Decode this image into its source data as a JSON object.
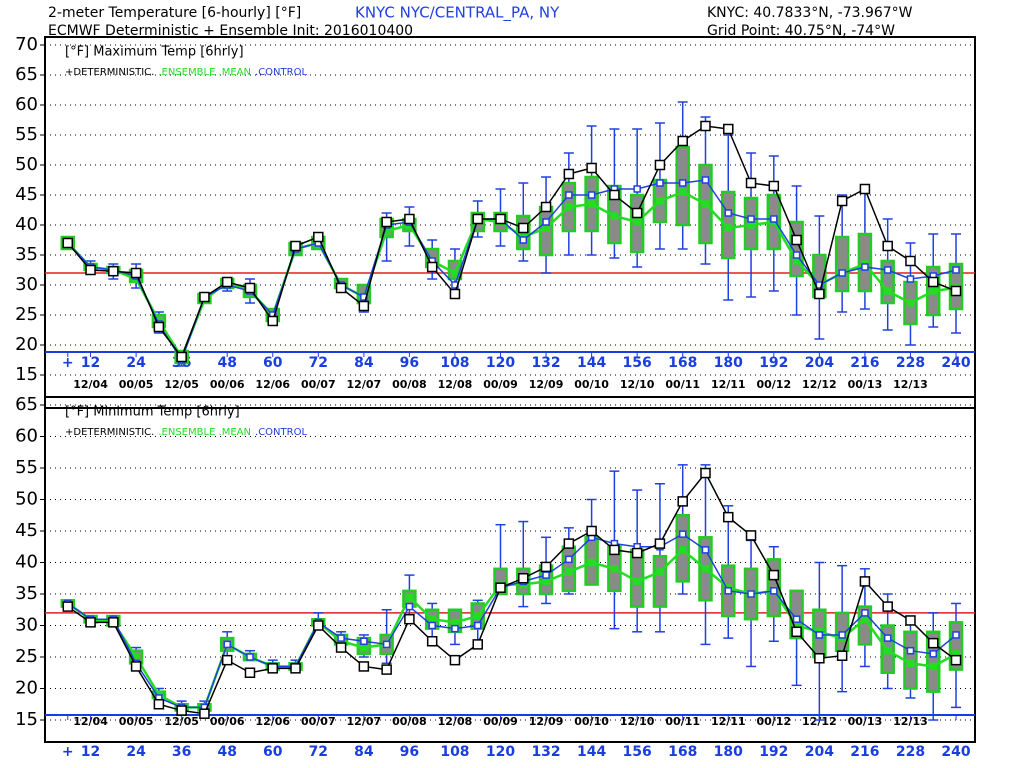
{
  "header": {
    "title": "2-meter Temperature [6-hourly] [°F]",
    "station": "KNYC NYC/CENTRAL_PA, NY",
    "subtitle": "ECMWF Deterministic + Ensemble Init: 2016010400",
    "station_coords": "KNYC: 40.7833°N, -73.967°W",
    "grid_point": "Grid Point: 40.75°N, -74°W"
  },
  "chart_data": [
    {
      "type": "ensemble",
      "title": "[°F] Maximum Temp [6hrly]",
      "x": [
        6,
        12,
        18,
        24,
        30,
        36,
        42,
        48,
        54,
        60,
        66,
        72,
        78,
        84,
        90,
        96,
        102,
        108,
        114,
        120,
        126,
        132,
        138,
        144,
        150,
        156,
        162,
        168,
        174,
        180,
        186,
        192,
        198,
        204,
        210,
        216,
        222,
        228,
        234,
        240
      ],
      "xlim": [
        0,
        245
      ],
      "xticks": [
        {
          "value": 6,
          "label": "+"
        },
        12,
        24,
        36,
        48,
        60,
        72,
        84,
        96,
        108,
        120,
        132,
        144,
        156,
        168,
        180,
        192,
        204,
        216,
        228,
        240
      ],
      "date_ticks": [
        {
          "value": 12,
          "label": "12/04"
        },
        {
          "value": 24,
          "label": "00/05"
        },
        {
          "value": 36,
          "label": "12/05"
        },
        {
          "value": 48,
          "label": "00/06"
        },
        {
          "value": 60,
          "label": "12/06"
        },
        {
          "value": 72,
          "label": "00/07"
        },
        {
          "value": 84,
          "label": "12/07"
        },
        {
          "value": 96,
          "label": "00/08"
        },
        {
          "value": 108,
          "label": "12/08"
        },
        {
          "value": 120,
          "label": "00/09"
        },
        {
          "value": 132,
          "label": "12/09"
        },
        {
          "value": 144,
          "label": "00/10"
        },
        {
          "value": 156,
          "label": "12/10"
        },
        {
          "value": 168,
          "label": "00/11"
        },
        {
          "value": 180,
          "label": "12/11"
        },
        {
          "value": 192,
          "label": "00/12"
        },
        {
          "value": 204,
          "label": "12/12"
        },
        {
          "value": 216,
          "label": "00/13"
        },
        {
          "value": 228,
          "label": "12/13"
        }
      ],
      "ylim": [
        15,
        70
      ],
      "yticks": [
        15,
        20,
        25,
        30,
        35,
        40,
        45,
        50,
        55,
        60,
        65,
        70
      ],
      "grid": true,
      "reference_line": {
        "value": 32,
        "color": "#e02020"
      },
      "series": [
        {
          "name": "+DETERMINISTIC.",
          "color": "#000000",
          "values": [
            37,
            32.5,
            32.3,
            32,
            23,
            18,
            28,
            30.5,
            29.5,
            24,
            36.5,
            38,
            29.5,
            26.5,
            40.5,
            41,
            33,
            28.5,
            41,
            41,
            39.5,
            43,
            48.5,
            49.5,
            45,
            42,
            50,
            54,
            56.5,
            56,
            47,
            46.5,
            37.5,
            28.5,
            44,
            46,
            36.5,
            34,
            30.5,
            29
          ]
        },
        {
          "name": ".ENSEMBLE .MEAN",
          "color": "#22dd22",
          "values": [
            37,
            33,
            32.5,
            31,
            24,
            18,
            27.5,
            30.5,
            29,
            25,
            36,
            37,
            30,
            28,
            39,
            40,
            34,
            32,
            41,
            40.5,
            38,
            39.5,
            43,
            43.5,
            41.5,
            40.5,
            44,
            45.5,
            43.5,
            39.5,
            40,
            40.5,
            34,
            30,
            32,
            33.5,
            29,
            27,
            29,
            29.5
          ]
        },
        {
          "name": ".CONTROL",
          "color": "#2040e0",
          "values": [
            37,
            33,
            32.5,
            31.5,
            23.5,
            17.5,
            28,
            30,
            29,
            25,
            36,
            37,
            30,
            28,
            40,
            40.5,
            34,
            30,
            41,
            41,
            37.5,
            40.5,
            45,
            45,
            46,
            46,
            47,
            47,
            47.5,
            42,
            41,
            41,
            35,
            30,
            32,
            33,
            32.5,
            31,
            31.5,
            32.5
          ]
        }
      ],
      "boxes": {
        "color": "#22cc22",
        "fill": "#8a8a8a",
        "whisker_color": "#2040e0",
        "q1": [
          36,
          32.5,
          32,
          30.5,
          23,
          17,
          27,
          29.5,
          28,
          24,
          35,
          36,
          29.5,
          27,
          38,
          39,
          33,
          31,
          39,
          39,
          36,
          35,
          39,
          39,
          37,
          35.5,
          40.5,
          40,
          37,
          34.5,
          36,
          36,
          31.5,
          28,
          29,
          29,
          27,
          23.5,
          25,
          26
        ],
        "q3": [
          38,
          33.5,
          33,
          32.5,
          25,
          19,
          28.5,
          31,
          30,
          26,
          37,
          38,
          31,
          30,
          41,
          41,
          36,
          34,
          42,
          42,
          41.5,
          43,
          47,
          48,
          46.5,
          45,
          47.5,
          53,
          50,
          45.5,
          44.5,
          45,
          40.5,
          35,
          38,
          38.5,
          34,
          30.5,
          33,
          33.5
        ],
        "low": [
          36,
          32,
          31,
          29.5,
          22,
          16.5,
          27,
          29,
          27,
          23.5,
          35,
          36,
          29,
          25.5,
          34,
          36.5,
          31,
          28.5,
          38,
          36.5,
          34,
          32,
          35,
          35,
          34.5,
          33,
          36,
          36,
          33.5,
          27.5,
          28,
          29,
          25,
          21,
          25.5,
          26,
          22.5,
          20,
          23,
          22
        ],
        "high": [
          38,
          34,
          33.5,
          33.5,
          25.5,
          19,
          28.5,
          31,
          31,
          26,
          37,
          38.5,
          31,
          30,
          42,
          43,
          37.5,
          36,
          44,
          46,
          47,
          48,
          52,
          56.5,
          56,
          56,
          57,
          60.5,
          58,
          55,
          52,
          51.5,
          46.5,
          41.5,
          45,
          45.5,
          41,
          37,
          38.5,
          38.5
        ]
      }
    },
    {
      "type": "ensemble",
      "title": "[°F] Minimum Temp [6hrly]",
      "x": [
        6,
        12,
        18,
        24,
        30,
        36,
        42,
        48,
        54,
        60,
        66,
        72,
        78,
        84,
        90,
        96,
        102,
        108,
        114,
        120,
        126,
        132,
        138,
        144,
        150,
        156,
        162,
        168,
        174,
        180,
        186,
        192,
        198,
        204,
        210,
        216,
        222,
        228,
        234,
        240
      ],
      "xlim": [
        0,
        245
      ],
      "xticks": [
        {
          "value": 6,
          "label": "+"
        },
        12,
        24,
        36,
        48,
        60,
        72,
        84,
        96,
        108,
        120,
        132,
        144,
        156,
        168,
        180,
        192,
        204,
        216,
        228,
        240
      ],
      "date_ticks": [
        {
          "value": 12,
          "label": "12/04"
        },
        {
          "value": 24,
          "label": "00/05"
        },
        {
          "value": 36,
          "label": "12/05"
        },
        {
          "value": 48,
          "label": "00/06"
        },
        {
          "value": 60,
          "label": "12/06"
        },
        {
          "value": 72,
          "label": "00/07"
        },
        {
          "value": 84,
          "label": "12/07"
        },
        {
          "value": 96,
          "label": "00/08"
        },
        {
          "value": 108,
          "label": "12/08"
        },
        {
          "value": 120,
          "label": "00/09"
        },
        {
          "value": 132,
          "label": "12/09"
        },
        {
          "value": 144,
          "label": "00/10"
        },
        {
          "value": 156,
          "label": "12/10"
        },
        {
          "value": 168,
          "label": "00/11"
        },
        {
          "value": 180,
          "label": "12/11"
        },
        {
          "value": 192,
          "label": "00/12"
        },
        {
          "value": 204,
          "label": "12/12"
        },
        {
          "value": 216,
          "label": "00/13"
        },
        {
          "value": 228,
          "label": "12/13"
        }
      ],
      "ylim": [
        15,
        65
      ],
      "yticks": [
        15,
        20,
        25,
        30,
        35,
        40,
        45,
        50,
        55,
        60,
        65
      ],
      "grid": true,
      "reference_line": {
        "value": 32,
        "color": "#e02020"
      },
      "series": [
        {
          "name": "+DETERMINISTIC.",
          "color": "#000000",
          "values": [
            33,
            30.5,
            30.5,
            23.5,
            17.5,
            16.5,
            16,
            24.5,
            22.5,
            23.2,
            23.2,
            30,
            26.5,
            23.5,
            23,
            31,
            27.5,
            24.5,
            27,
            36,
            37.5,
            39.3,
            43,
            45,
            42,
            41.5,
            43,
            49.7,
            54.2,
            47.2,
            44.3,
            38,
            29,
            24.8,
            25.2,
            37,
            33,
            30.8,
            27.2,
            24.5
          ]
        },
        {
          "name": ".ENSEMBLE .MEAN",
          "color": "#22dd22",
          "values": [
            33.5,
            31,
            30.5,
            25,
            19,
            17,
            17,
            27,
            25,
            23.5,
            23.5,
            30.5,
            27.5,
            26.5,
            27,
            34.5,
            31,
            30.5,
            31.5,
            36.5,
            36.5,
            37,
            38.5,
            40,
            39,
            37,
            38.5,
            42,
            39,
            36,
            35,
            35.5,
            30,
            29,
            28,
            31,
            26,
            24,
            23.5,
            25.5
          ]
        },
        {
          "name": ".CONTROL",
          "color": "#2040e0",
          "values": [
            33.5,
            31,
            31,
            24,
            18.5,
            17,
            17,
            27,
            25,
            23.5,
            23.5,
            30.5,
            28,
            27.5,
            27,
            33,
            30,
            29.5,
            30,
            36,
            37,
            38,
            40.5,
            44,
            43,
            42.5,
            42.5,
            44.5,
            42,
            35.5,
            35,
            35.5,
            31,
            28.5,
            28.5,
            32,
            28,
            26,
            25.5,
            28.5
          ]
        }
      ],
      "boxes": {
        "color": "#22cc22",
        "fill": "#8a8a8a",
        "whisker_color": "#2040e0",
        "q1": [
          33,
          30.5,
          30,
          24,
          18.5,
          16.5,
          16.5,
          26,
          24.5,
          23,
          23,
          30,
          27,
          25.5,
          25.5,
          33,
          29.5,
          29,
          29.5,
          35,
          35,
          35,
          35.5,
          36.5,
          35.5,
          33,
          33,
          37,
          34,
          31.5,
          31,
          31.5,
          28,
          25,
          26,
          27,
          22.5,
          20,
          19.5,
          23
        ],
        "q3": [
          34,
          31.5,
          31.5,
          26,
          19.5,
          17.5,
          17.5,
          28,
          25.5,
          24,
          24,
          31,
          28.5,
          28,
          28.5,
          35.5,
          32.5,
          32.5,
          33.5,
          39,
          39,
          39.5,
          42.5,
          44,
          42.5,
          42,
          41,
          47.5,
          44,
          39.5,
          39,
          40.5,
          35.5,
          32.5,
          32,
          33,
          30,
          29,
          29,
          30.5
        ],
        "low": [
          33,
          30.5,
          30,
          23,
          18,
          16,
          16,
          25,
          24.5,
          23,
          23,
          29.5,
          27,
          25,
          24,
          31.5,
          28,
          27,
          27.5,
          35,
          33,
          33.5,
          35,
          36.5,
          29.5,
          29,
          29,
          35,
          27,
          28,
          23.5,
          27.5,
          20.5,
          15,
          19.5,
          23.5,
          20,
          18.5,
          15,
          17
        ],
        "high": [
          34,
          31.5,
          31.5,
          26.5,
          20,
          18,
          18,
          29,
          26,
          24.5,
          24.5,
          32,
          29,
          28.5,
          32.5,
          38,
          33.5,
          32.5,
          34,
          46,
          46.5,
          44,
          45.5,
          50,
          54.5,
          51.5,
          52.5,
          55.5,
          55.5,
          49,
          43.5,
          42.5,
          35.5,
          40,
          39.5,
          39,
          35,
          31,
          32,
          33.5
        ]
      }
    }
  ]
}
